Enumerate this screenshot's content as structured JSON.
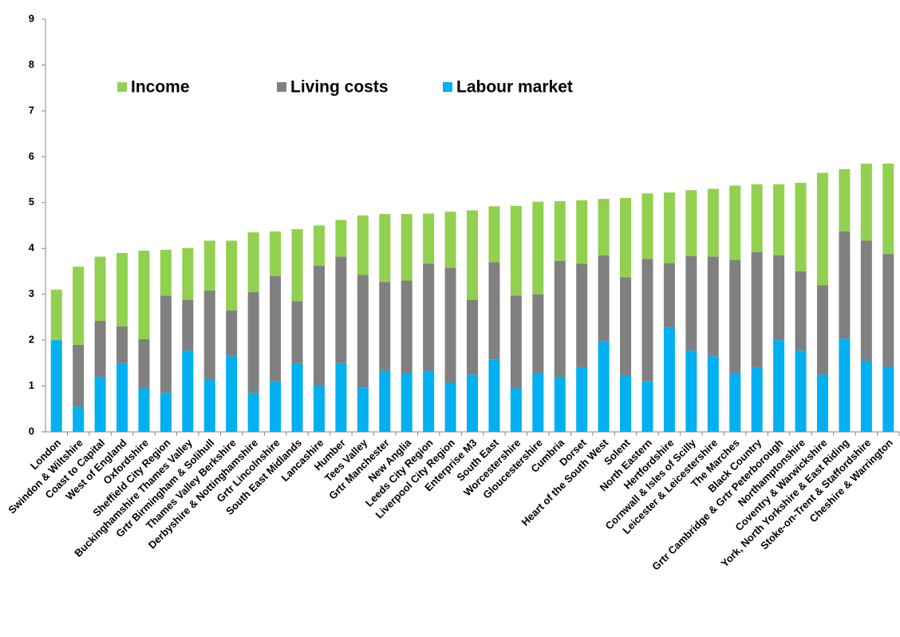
{
  "chart_data": {
    "type": "stacked-bar",
    "categories": [
      "London",
      "Swindon & Wiltshire",
      "Coast to Capital",
      "West of England",
      "Oxfordshire",
      "Sheffield City Region",
      "Buckinghamshire Thames Valley",
      "Grtr Birmingham & Solihull",
      "Thames Valley Berkshire",
      "Derbyshire & Nottinghamshire",
      "Grtr Lincolnshire",
      "South East Midlands",
      "Lancashire",
      "Humber",
      "Tees Valley",
      "Grtr Manchester",
      "New Anglia",
      "Leeds City Region",
      "Liverpool City Region",
      "Enterprise M3",
      "South East",
      "Worcestershire",
      "Gloucestershire",
      "Cumbria",
      "Dorset",
      "Heart of the South West",
      "Solent",
      "North Eastern",
      "Hertfordshire",
      "Cornwall & Isles of Scilly",
      "Leicester & Leicestershire",
      "The Marches",
      "Black Country",
      "Grtr Cambridge & Grtr Peterborough",
      "Northamptonshire",
      "Coventry & Warwickshire",
      "York, North Yorkshire & East Riding",
      "Stoke-on-Trent & Staffordshire",
      "Cheshire & Warrington"
    ],
    "series": [
      {
        "name": "Income",
        "color": "#92d050",
        "values": [
          1.1,
          1.7,
          1.4,
          1.6,
          1.93,
          1.0,
          1.13,
          1.09,
          1.52,
          1.3,
          0.97,
          1.57,
          0.88,
          0.8,
          1.3,
          1.48,
          1.45,
          1.09,
          1.22,
          1.95,
          1.22,
          1.96,
          2.02,
          1.3,
          1.38,
          1.23,
          1.73,
          1.43,
          1.54,
          1.44,
          1.48,
          1.62,
          1.48,
          1.55,
          1.93,
          2.45,
          1.36,
          1.68,
          1.97
        ]
      },
      {
        "name": "Living costs",
        "color": "#808080",
        "values": [
          0,
          1.35,
          1.22,
          0.8,
          1.07,
          2.12,
          1.11,
          1.95,
          1.0,
          2.2,
          2.3,
          1.35,
          2.62,
          2.32,
          2.45,
          1.94,
          2.02,
          2.34,
          2.51,
          1.63,
          2.12,
          2.02,
          1.72,
          2.53,
          2.27,
          1.87,
          2.15,
          2.67,
          1.41,
          2.06,
          2.17,
          2.47,
          2.52,
          1.85,
          1.73,
          1.95,
          2.34,
          2.62,
          2.46
        ]
      },
      {
        "name": "Labour market",
        "color": "#00b0f0",
        "values": [
          2.0,
          0.55,
          1.2,
          1.5,
          0.95,
          0.85,
          1.77,
          1.13,
          1.65,
          0.85,
          1.1,
          1.5,
          1.0,
          1.5,
          0.97,
          1.33,
          1.28,
          1.33,
          1.07,
          1.25,
          1.58,
          0.95,
          1.28,
          1.2,
          1.4,
          1.98,
          1.22,
          1.1,
          2.27,
          1.77,
          1.65,
          1.28,
          1.4,
          2.0,
          1.77,
          1.25,
          2.03,
          1.55,
          1.42
        ]
      }
    ],
    "ylim": [
      0,
      9
    ],
    "yticks": [
      0,
      1,
      2,
      3,
      4,
      5,
      6,
      7,
      8,
      9
    ],
    "grid": false
  }
}
